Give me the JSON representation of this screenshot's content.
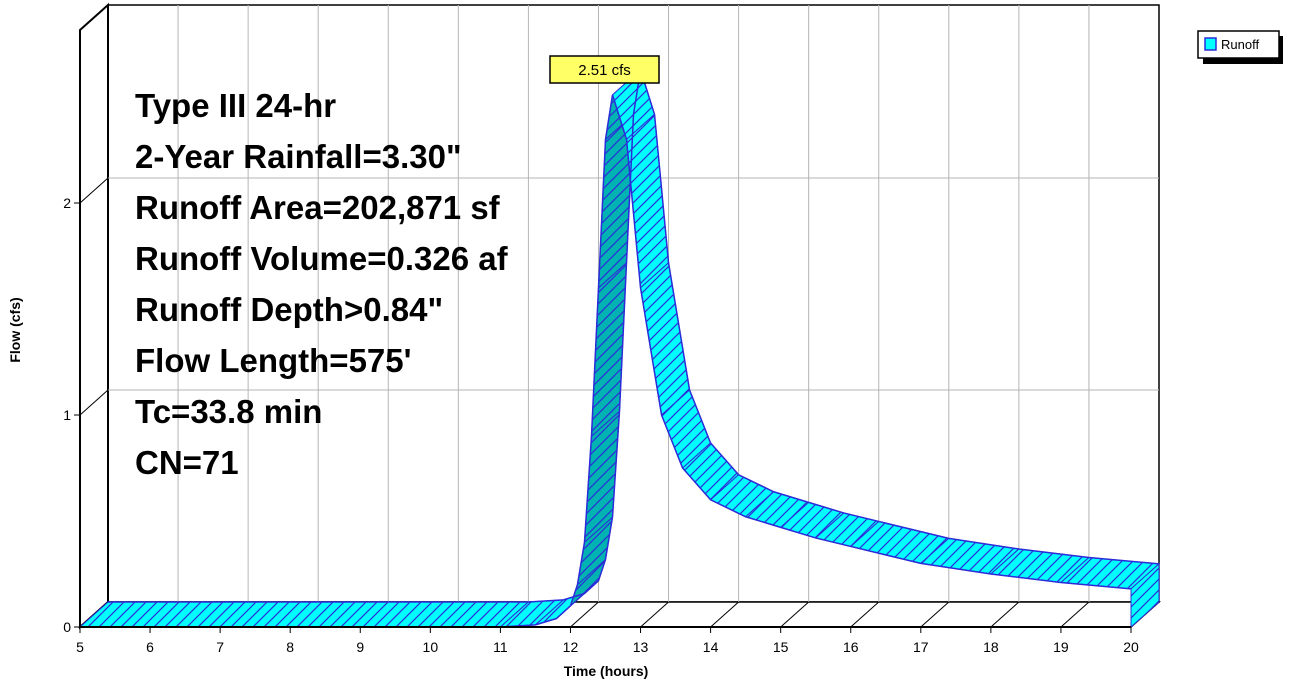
{
  "chart_data": {
    "type": "area",
    "title": "",
    "xlabel": "Time  (hours)",
    "ylabel": "Flow  (cfs)",
    "xlim": [
      5,
      20
    ],
    "ylim": [
      0,
      2.51
    ],
    "x_ticks": [
      "5",
      "6",
      "7",
      "8",
      "9",
      "10",
      "11",
      "12",
      "13",
      "14",
      "15",
      "16",
      "17",
      "18",
      "19",
      "20"
    ],
    "y_ticks": [
      "0",
      "1",
      "2"
    ],
    "grid": true,
    "legend_position": "top-right",
    "series": [
      {
        "name": "Runoff",
        "color": "#00ffff",
        "x": [
          5,
          11,
          11.5,
          11.8,
          12.0,
          12.1,
          12.2,
          12.3,
          12.4,
          12.5,
          12.6,
          12.8,
          13.0,
          13.3,
          13.6,
          14.0,
          14.5,
          15.0,
          15.5,
          16.0,
          17.0,
          18.0,
          19.0,
          20.0
        ],
        "y": [
          0,
          0,
          0.01,
          0.04,
          0.1,
          0.2,
          0.4,
          0.9,
          1.6,
          2.3,
          2.51,
          2.3,
          1.6,
          1.0,
          0.75,
          0.6,
          0.52,
          0.47,
          0.42,
          0.38,
          0.3,
          0.25,
          0.21,
          0.18
        ]
      }
    ],
    "annotations": {
      "peak_label": "2.51 cfs",
      "info_lines": [
        "Type III 24-hr",
        "2-Year Rainfall=3.30\"",
        "Runoff Area=202,871 sf",
        "Runoff Volume=0.326 af",
        "Runoff Depth>0.84\"",
        "Flow Length=575'",
        "Tc=33.8 min",
        "CN=71"
      ]
    }
  }
}
